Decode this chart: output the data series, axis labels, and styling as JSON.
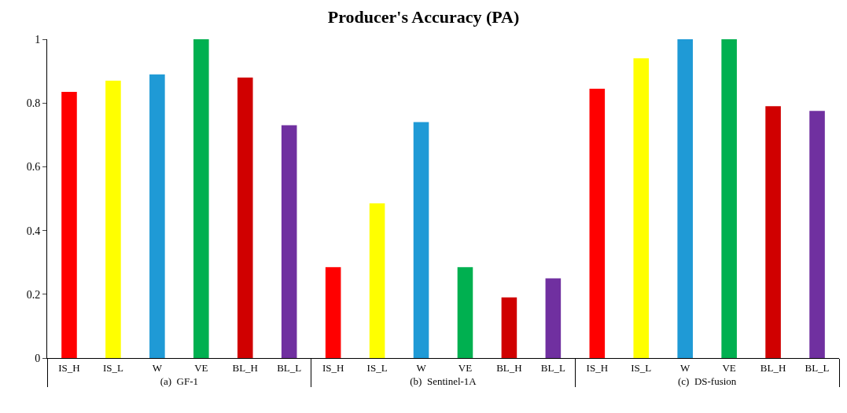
{
  "chart_data": {
    "type": "bar",
    "title": "Producer's Accuracy (PA)",
    "categories": [
      "IS_H",
      "IS_L",
      "W",
      "VE",
      "BL_H",
      "BL_L",
      "IS_H",
      "IS_L",
      "W",
      "VE",
      "BL_H",
      "BL_L",
      "IS_H",
      "IS_L",
      "W",
      "VE",
      "BL_H",
      "BL_L"
    ],
    "values": [
      0.835,
      0.87,
      0.89,
      1.0,
      0.88,
      0.73,
      0.285,
      0.485,
      0.74,
      0.285,
      0.19,
      0.25,
      0.845,
      0.94,
      1.0,
      1.0,
      0.79,
      0.775
    ],
    "colors": [
      "#ff0000",
      "#ffff00",
      "#1f9ad6",
      "#00b050",
      "#d00000",
      "#7030a0",
      "#ff0000",
      "#ffff00",
      "#1f9ad6",
      "#00b050",
      "#d00000",
      "#7030a0",
      "#ff0000",
      "#ffff00",
      "#1f9ad6",
      "#00b050",
      "#d00000",
      "#7030a0"
    ],
    "annotations": [
      "(a)  GF-1",
      "(b)  Sentinel-1A",
      "(c)  DS-fusion"
    ],
    "ylim": [
      0,
      1
    ],
    "yticks": [
      0,
      0.2,
      0.4,
      0.6,
      0.8,
      1
    ]
  }
}
